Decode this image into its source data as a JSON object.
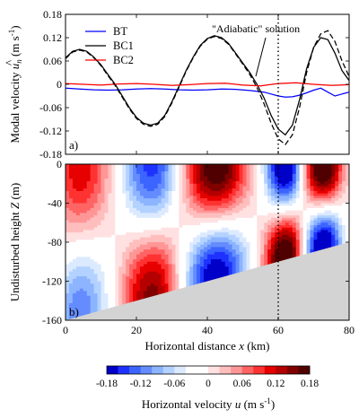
{
  "chart_data": [
    {
      "type": "line",
      "panel_label": "a)",
      "ylabel_text": "Modal velocity ",
      "ylabel_symbol": "u",
      "ylabel_subscript": "n",
      "ylabel_hat": "^",
      "ylabel_unit": " (m s",
      "ylabel_unit_sup": "-1",
      "ylabel_unit_close": ")",
      "ylim": [
        -0.18,
        0.18
      ],
      "yticks": [
        "0.18",
        "0.12",
        "0.06",
        "0",
        "-0.06",
        "-0.12",
        "-0.18"
      ],
      "ytick_values": [
        0.18,
        0.12,
        0.06,
        0,
        -0.06,
        -0.12,
        -0.18
      ],
      "xlim": [
        0,
        80
      ],
      "legend": {
        "position": "top-left",
        "entries": [
          "BT",
          "BC1",
          "BC2"
        ]
      },
      "annotation": "\"Adiabatic\" solution",
      "vertical_marker_x": 60,
      "series": [
        {
          "name": "BT",
          "color": "#0000ff",
          "dash": "",
          "x": [
            0,
            4,
            8,
            12,
            16,
            20,
            24,
            28,
            32,
            36,
            40,
            44,
            48,
            52,
            56,
            58,
            60,
            62,
            64,
            66,
            68,
            70,
            72,
            74,
            76,
            78,
            80
          ],
          "y": [
            -0.01,
            -0.012,
            -0.014,
            -0.015,
            -0.014,
            -0.012,
            -0.011,
            -0.012,
            -0.014,
            -0.015,
            -0.014,
            -0.012,
            -0.013,
            -0.016,
            -0.02,
            -0.025,
            -0.03,
            -0.033,
            -0.032,
            -0.028,
            -0.022,
            -0.015,
            -0.01,
            -0.02,
            -0.03,
            -0.025,
            -0.02
          ]
        },
        {
          "name": "BC1",
          "color": "#000000",
          "dash": "",
          "x": [
            0,
            2,
            4,
            6,
            8,
            10,
            12,
            14,
            16,
            18,
            20,
            22,
            24,
            26,
            28,
            30,
            32,
            34,
            36,
            38,
            40,
            42,
            44,
            46,
            48,
            50,
            52,
            54,
            56,
            58,
            60,
            62,
            64,
            66,
            68,
            70,
            72,
            74,
            76,
            78,
            80
          ],
          "y": [
            0.068,
            0.085,
            0.09,
            0.085,
            0.07,
            0.05,
            0.025,
            0.0,
            -0.03,
            -0.06,
            -0.085,
            -0.1,
            -0.105,
            -0.1,
            -0.08,
            -0.045,
            -0.005,
            0.035,
            0.07,
            0.1,
            0.118,
            0.125,
            0.12,
            0.105,
            0.08,
            0.055,
            0.03,
            0.0,
            -0.035,
            -0.08,
            -0.115,
            -0.13,
            -0.105,
            -0.04,
            0.04,
            0.095,
            0.12,
            0.115,
            0.08,
            0.035,
            0.01
          ]
        },
        {
          "name": "BC2",
          "color": "#ff0000",
          "dash": "",
          "x": [
            0,
            5,
            10,
            15,
            20,
            25,
            30,
            35,
            40,
            45,
            50,
            55,
            60,
            65,
            70,
            75,
            80
          ],
          "y": [
            0.002,
            0.0,
            -0.002,
            0.001,
            0.002,
            0.0,
            -0.003,
            -0.001,
            0.002,
            0.003,
            -0.002,
            -0.004,
            0.002,
            0.004,
            0.0,
            -0.003,
            -0.001
          ]
        },
        {
          "name": "\"Adiabatic\" solution",
          "color": "#000000",
          "dash": "6,3",
          "x": [
            0,
            2,
            4,
            6,
            8,
            10,
            12,
            14,
            16,
            18,
            20,
            22,
            24,
            26,
            28,
            30,
            32,
            34,
            36,
            38,
            40,
            42,
            44,
            46,
            48,
            50,
            52,
            54,
            56,
            58,
            60,
            62,
            64,
            66,
            68,
            70,
            72,
            74,
            76,
            78,
            80
          ],
          "y": [
            0.066,
            0.083,
            0.088,
            0.083,
            0.068,
            0.048,
            0.022,
            -0.003,
            -0.033,
            -0.063,
            -0.088,
            -0.103,
            -0.108,
            -0.103,
            -0.083,
            -0.048,
            -0.008,
            0.033,
            0.068,
            0.098,
            0.116,
            0.123,
            0.118,
            0.103,
            0.078,
            0.052,
            0.025,
            -0.008,
            -0.05,
            -0.1,
            -0.14,
            -0.155,
            -0.13,
            -0.06,
            0.03,
            0.095,
            0.13,
            0.138,
            0.11,
            0.06,
            0.02
          ]
        }
      ]
    },
    {
      "type": "heatmap",
      "panel_label": "b)",
      "ylabel_text": "Undisturbed height ",
      "ylabel_symbol": "Z",
      "ylabel_unit": " (m)",
      "xlabel_text": "Horizontal distance ",
      "xlabel_symbol": "x",
      "xlabel_unit": " (km)",
      "xlim": [
        0,
        80
      ],
      "ylim": [
        -160,
        0
      ],
      "xticks": [
        "0",
        "20",
        "40",
        "60",
        "80"
      ],
      "xtick_values": [
        0,
        20,
        40,
        60,
        80
      ],
      "yticks": [
        "0",
        "-40",
        "-80",
        "-120",
        "-160"
      ],
      "ytick_values": [
        0,
        -40,
        -80,
        -120,
        -160
      ],
      "vertical_marker_x": 60,
      "bottom": {
        "x": [
          0,
          80
        ],
        "z": [
          -160,
          -80
        ],
        "fill": "#d3d3d3"
      },
      "colorbar": {
        "label_text": "Horizontal velocity ",
        "label_symbol": "u",
        "label_unit": " (m s",
        "label_unit_sup": "-1",
        "label_unit_close": ")",
        "range": [
          -0.18,
          0.18
        ],
        "ticks": [
          "-0.18",
          "-0.12",
          "-0.06",
          "0",
          "0.06",
          "0.12",
          "0.18"
        ],
        "tick_values": [
          -0.18,
          -0.12,
          -0.06,
          0,
          0.06,
          0.12,
          0.18
        ],
        "colors": [
          "#0000c8",
          "#1e32ff",
          "#3c64ff",
          "#648cff",
          "#8cb4ff",
          "#b4d2ff",
          "#dceaff",
          "#ffffff",
          "#ffffff",
          "#ffe1e1",
          "#ffbebe",
          "#ff9696",
          "#ff6464",
          "#ff3232",
          "#e60000",
          "#b40000",
          "#800000",
          "#500000"
        ]
      }
    }
  ]
}
